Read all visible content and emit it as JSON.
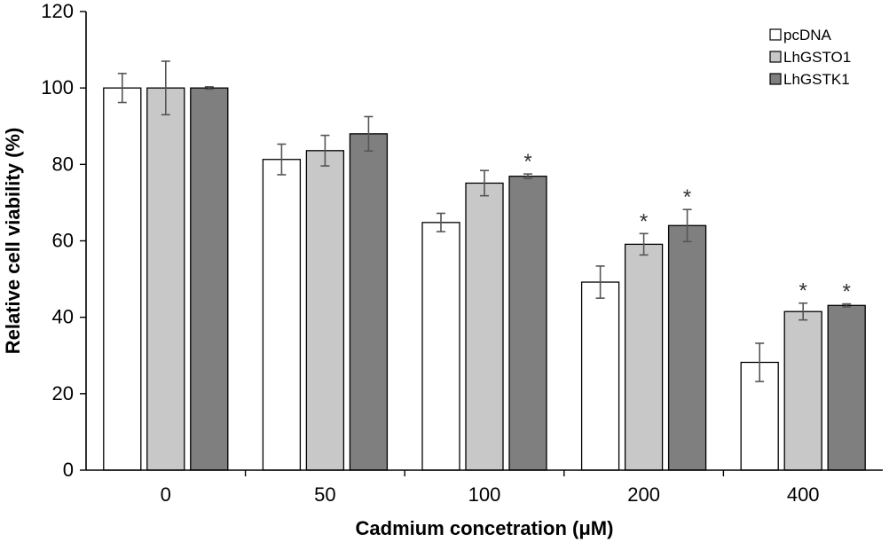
{
  "chart_data": {
    "type": "bar",
    "title": "",
    "xlabel": "Cadmium concetration (μM)",
    "ylabel": "Relative cell viability (%)",
    "ylim": [
      0,
      120
    ],
    "yticks": [
      0,
      20,
      40,
      60,
      80,
      100,
      120
    ],
    "categories": [
      "0",
      "50",
      "100",
      "200",
      "400"
    ],
    "grid": false,
    "legend_position": "top-right",
    "significance_marker": "*",
    "series": [
      {
        "name": "pcDNA",
        "color": "#ffffff",
        "values": [
          100,
          81.3,
          64.8,
          49.2,
          28.2
        ],
        "errors": [
          3.8,
          4.0,
          2.4,
          4.2,
          5.0
        ],
        "significant": [
          false,
          false,
          false,
          false,
          false
        ]
      },
      {
        "name": "LhGSTO1",
        "color": "#c8c8c8",
        "values": [
          100,
          83.6,
          75.1,
          59.1,
          41.5
        ],
        "errors": [
          7.0,
          4.0,
          3.3,
          2.8,
          2.2
        ],
        "significant": [
          false,
          false,
          false,
          true,
          true
        ]
      },
      {
        "name": "LhGSTK1",
        "color": "#7f7f7f",
        "values": [
          100,
          88.0,
          76.9,
          64.0,
          43.1
        ],
        "errors": [
          0.3,
          4.5,
          0.6,
          4.2,
          0.4
        ],
        "significant": [
          false,
          false,
          true,
          true,
          true
        ]
      }
    ]
  }
}
